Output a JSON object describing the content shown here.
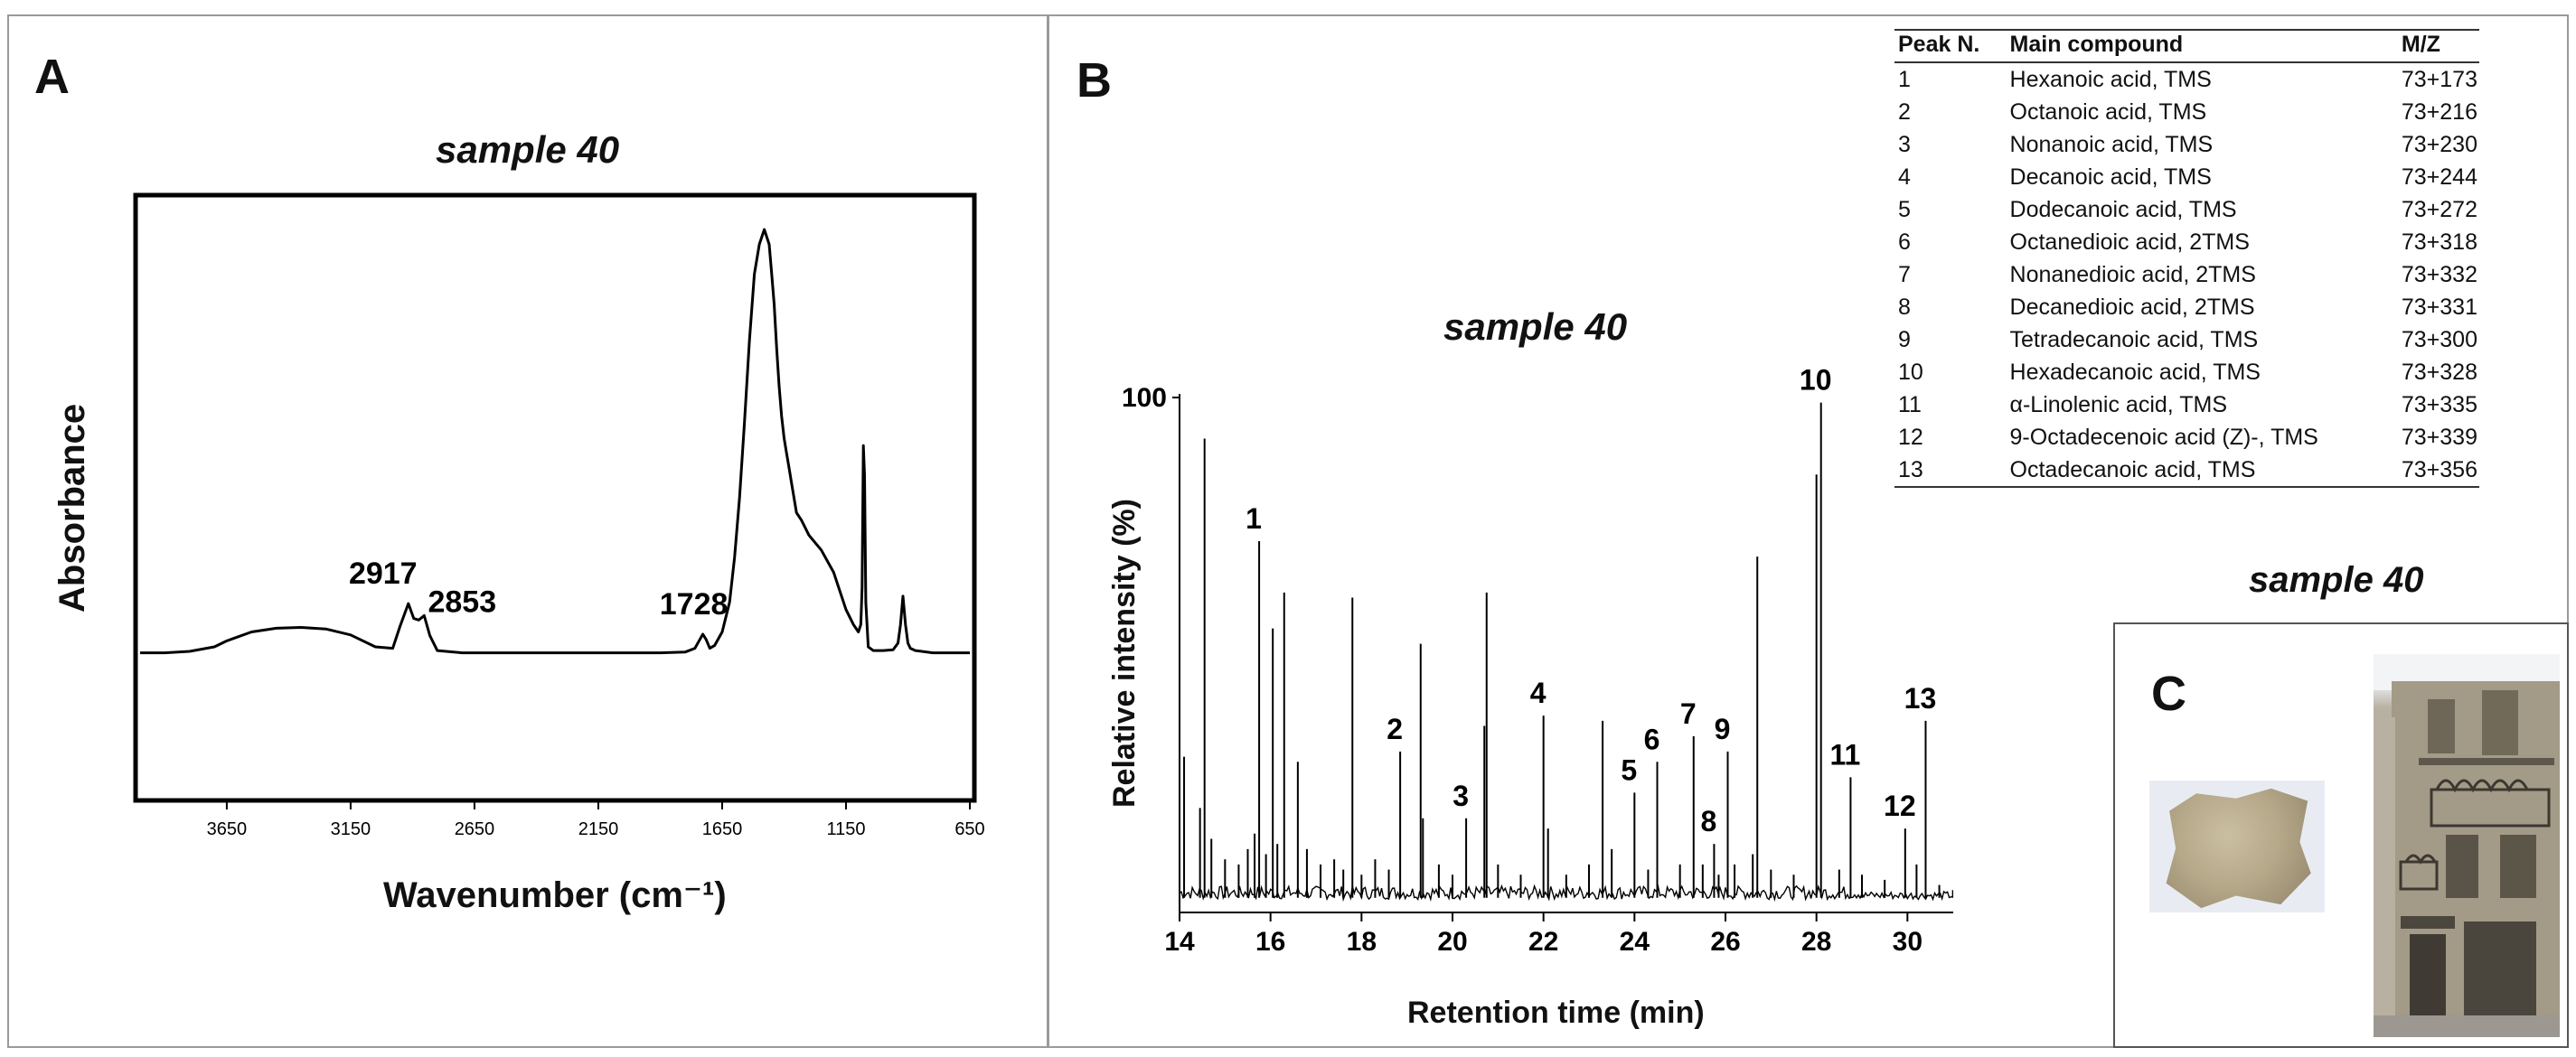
{
  "panel_a": {
    "letter": "A",
    "chart_data": {
      "type": "line",
      "title": "sample 40",
      "xlabel": "Wavenumber (cm⁻¹)",
      "ylabel": "Absorbance",
      "x_reversed": true,
      "xlim": [
        4000,
        650
      ],
      "x_ticks": [
        3650,
        3150,
        2650,
        2150,
        1650,
        1150,
        650
      ],
      "y_ticks_shown": false,
      "grid": false,
      "series": [
        {
          "x": [
            4000,
            3900,
            3800,
            3700,
            3650,
            3550,
            3450,
            3350,
            3250,
            3150,
            3050,
            2980,
            2950,
            2917,
            2895,
            2875,
            2853,
            2830,
            2800,
            2700,
            2500,
            2300,
            2100,
            1900,
            1800,
            1760,
            1740,
            1728,
            1715,
            1700,
            1680,
            1650,
            1620,
            1600,
            1580,
            1560,
            1540,
            1520,
            1500,
            1480,
            1460,
            1450,
            1440,
            1430,
            1420,
            1410,
            1400,
            1390,
            1380,
            1370,
            1350,
            1330,
            1300,
            1250,
            1200,
            1150,
            1120,
            1100,
            1090,
            1085,
            1080,
            1075,
            1070,
            1060,
            1040,
            1000,
            960,
            940,
            930,
            920,
            910,
            900,
            890,
            870,
            800,
            700,
            650
          ],
          "y": [
            0.012,
            0.012,
            0.014,
            0.02,
            0.028,
            0.04,
            0.045,
            0.046,
            0.044,
            0.036,
            0.02,
            0.018,
            0.048,
            0.078,
            0.058,
            0.056,
            0.062,
            0.035,
            0.015,
            0.012,
            0.012,
            0.012,
            0.012,
            0.012,
            0.013,
            0.018,
            0.03,
            0.037,
            0.03,
            0.018,
            0.022,
            0.04,
            0.08,
            0.14,
            0.22,
            0.32,
            0.43,
            0.52,
            0.56,
            0.58,
            0.56,
            0.52,
            0.48,
            0.42,
            0.37,
            0.33,
            0.3,
            0.28,
            0.26,
            0.24,
            0.2,
            0.19,
            0.17,
            0.15,
            0.12,
            0.07,
            0.05,
            0.04,
            0.05,
            0.1,
            0.29,
            0.25,
            0.08,
            0.02,
            0.015,
            0.015,
            0.016,
            0.025,
            0.05,
            0.088,
            0.05,
            0.025,
            0.018,
            0.015,
            0.012,
            0.012,
            0.012
          ]
        }
      ],
      "ylim": [
        -0.18,
        0.62
      ],
      "annotations": [
        {
          "text": "2917",
          "x": 2917,
          "y": 0.078
        },
        {
          "text": "2853",
          "x": 2853,
          "y": 0.062
        },
        {
          "text": "1728",
          "x": 1728,
          "y": 0.037
        }
      ]
    }
  },
  "panel_b": {
    "letter": "B",
    "chart_data": {
      "type": "line",
      "title": "sample 40",
      "xlabel": "Retention time (min)",
      "ylabel": "Relative intensity (%)",
      "xlim": [
        14,
        32
      ],
      "x_ticks": [
        14,
        16,
        18,
        20,
        22,
        24,
        26,
        28,
        30,
        32
      ],
      "ylim": [
        0,
        100
      ],
      "y_tick_labels": [
        "100"
      ],
      "grid": false,
      "peaks": [
        {
          "t": 14.0,
          "h": 97
        },
        {
          "t": 14.1,
          "h": 30
        },
        {
          "t": 14.45,
          "h": 20
        },
        {
          "t": 14.55,
          "h": 92
        },
        {
          "t": 14.7,
          "h": 14
        },
        {
          "t": 15.0,
          "h": 10
        },
        {
          "t": 15.3,
          "h": 9
        },
        {
          "t": 15.5,
          "h": 12
        },
        {
          "t": 15.65,
          "h": 15
        },
        {
          "t": 15.75,
          "h": 72
        },
        {
          "t": 15.9,
          "h": 11
        },
        {
          "t": 16.05,
          "h": 55
        },
        {
          "t": 16.15,
          "h": 13
        },
        {
          "t": 16.3,
          "h": 62
        },
        {
          "t": 16.6,
          "h": 29
        },
        {
          "t": 16.8,
          "h": 12
        },
        {
          "t": 17.1,
          "h": 9
        },
        {
          "t": 17.4,
          "h": 10
        },
        {
          "t": 17.6,
          "h": 8
        },
        {
          "t": 17.8,
          "h": 61
        },
        {
          "t": 18.0,
          "h": 7
        },
        {
          "t": 18.3,
          "h": 10
        },
        {
          "t": 18.6,
          "h": 8
        },
        {
          "t": 18.85,
          "h": 31
        },
        {
          "t": 19.3,
          "h": 52
        },
        {
          "t": 19.35,
          "h": 18
        },
        {
          "t": 19.7,
          "h": 9
        },
        {
          "t": 20.0,
          "h": 7
        },
        {
          "t": 20.3,
          "h": 18
        },
        {
          "t": 20.7,
          "h": 36
        },
        {
          "t": 20.75,
          "h": 62
        },
        {
          "t": 21.0,
          "h": 9
        },
        {
          "t": 21.5,
          "h": 7
        },
        {
          "t": 22.0,
          "h": 38
        },
        {
          "t": 22.1,
          "h": 16
        },
        {
          "t": 22.5,
          "h": 7
        },
        {
          "t": 23.0,
          "h": 9
        },
        {
          "t": 23.3,
          "h": 37
        },
        {
          "t": 23.5,
          "h": 12
        },
        {
          "t": 24.0,
          "h": 23
        },
        {
          "t": 24.3,
          "h": 8
        },
        {
          "t": 24.5,
          "h": 29
        },
        {
          "t": 25.0,
          "h": 9
        },
        {
          "t": 25.3,
          "h": 34
        },
        {
          "t": 25.5,
          "h": 9
        },
        {
          "t": 25.75,
          "h": 13
        },
        {
          "t": 25.85,
          "h": 7
        },
        {
          "t": 26.05,
          "h": 31
        },
        {
          "t": 26.2,
          "h": 9
        },
        {
          "t": 26.6,
          "h": 11
        },
        {
          "t": 26.7,
          "h": 69
        },
        {
          "t": 27.0,
          "h": 8
        },
        {
          "t": 27.5,
          "h": 7
        },
        {
          "t": 28.0,
          "h": 85
        },
        {
          "t": 28.1,
          "h": 99
        },
        {
          "t": 28.5,
          "h": 8
        },
        {
          "t": 28.75,
          "h": 26
        },
        {
          "t": 29.0,
          "h": 7
        },
        {
          "t": 29.5,
          "h": 6
        },
        {
          "t": 29.95,
          "h": 16
        },
        {
          "t": 30.2,
          "h": 9
        },
        {
          "t": 30.4,
          "h": 37
        },
        {
          "t": 30.7,
          "h": 5
        },
        {
          "t": 31.0,
          "h": 4
        }
      ],
      "peak_labels": [
        {
          "text": "1",
          "t": 15.75,
          "h": 72
        },
        {
          "text": "2",
          "t": 18.85,
          "h": 31
        },
        {
          "text": "3",
          "t": 20.3,
          "h": 18
        },
        {
          "text": "4",
          "t": 22.0,
          "h": 38
        },
        {
          "text": "5",
          "t": 24.0,
          "h": 23
        },
        {
          "text": "6",
          "t": 24.5,
          "h": 29
        },
        {
          "text": "7",
          "t": 25.3,
          "h": 34
        },
        {
          "text": "8",
          "t": 25.75,
          "h": 13
        },
        {
          "text": "9",
          "t": 26.05,
          "h": 31
        },
        {
          "text": "10",
          "t": 28.1,
          "h": 99
        },
        {
          "text": "11",
          "t": 28.75,
          "h": 26
        },
        {
          "text": "12",
          "t": 29.95,
          "h": 16
        },
        {
          "text": "13",
          "t": 30.4,
          "h": 37
        }
      ]
    },
    "table": {
      "headers": [
        "Peak N.",
        "Main compound",
        "M/Z"
      ],
      "rows": [
        [
          "1",
          "Hexanoic acid, TMS",
          "73+173"
        ],
        [
          "2",
          "Octanoic acid, TMS",
          "73+216"
        ],
        [
          "3",
          "Nonanoic acid, TMS",
          "73+230"
        ],
        [
          "4",
          "Decanoic acid, TMS",
          "73+244"
        ],
        [
          "5",
          "Dodecanoic acid, TMS",
          "73+272"
        ],
        [
          "6",
          "Octanedioic acid, 2TMS",
          "73+318"
        ],
        [
          "7",
          "Nonanedioic acid, 2TMS",
          "73+332"
        ],
        [
          "8",
          "Decanedioic acid, 2TMS",
          "73+331"
        ],
        [
          "9",
          "Tetradecanoic acid, TMS",
          "73+300"
        ],
        [
          "10",
          "Hexadecanoic acid, TMS",
          "73+328"
        ],
        [
          "11",
          "α-Linolenic acid, TMS",
          "73+335"
        ],
        [
          "12",
          "9-Octadecenoic acid (Z)-, TMS",
          "73+339"
        ],
        [
          "13",
          "Octadecanoic acid, TMS",
          "73+356"
        ]
      ]
    }
  },
  "panel_c": {
    "letter": "C",
    "title": "sample 40"
  }
}
